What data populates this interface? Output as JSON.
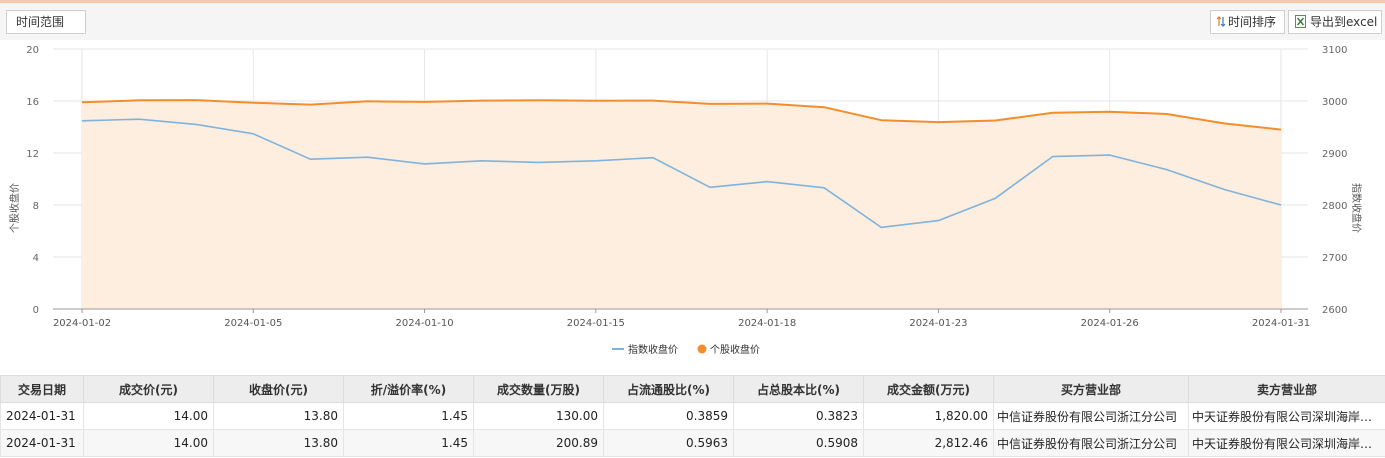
{
  "toolbar": {
    "time_range_label": "时间范围",
    "sort_label": "时间排序",
    "export_label": "导出到excel"
  },
  "chart_data": {
    "type": "line",
    "x": [
      "2024-01-02",
      "2024-01-03",
      "2024-01-04",
      "2024-01-05",
      "2024-01-08",
      "2024-01-09",
      "2024-01-10",
      "2024-01-11",
      "2024-01-12",
      "2024-01-15",
      "2024-01-16",
      "2024-01-17",
      "2024-01-18",
      "2024-01-19",
      "2024-01-22",
      "2024-01-23",
      "2024-01-24",
      "2024-01-25",
      "2024-01-26",
      "2024-01-29",
      "2024-01-30",
      "2024-01-31"
    ],
    "x_tick_labels": [
      "2024-01-02",
      "2024-01-05",
      "2024-01-10",
      "2024-01-15",
      "2024-01-18",
      "2024-01-23",
      "2024-01-26",
      "2024-01-31"
    ],
    "y_left_label": "个股收盘价",
    "y_right_label": "指数收盘价",
    "y_left_ticks": [
      0,
      4,
      8,
      12,
      16,
      20
    ],
    "y_right_ticks": [
      2600,
      2700,
      2800,
      2900,
      3000,
      3100
    ],
    "y_left_range": [
      0,
      20
    ],
    "y_right_range": [
      2600,
      3100
    ],
    "grid": true,
    "legend_position": "bottom-center",
    "series": [
      {
        "name": "指数收盘价",
        "axis": "right",
        "color": "#7fb3dc",
        "values": [
          2962,
          2965,
          2955,
          2937,
          2888,
          2892,
          2879,
          2885,
          2882,
          2885,
          2891,
          2834,
          2845,
          2833,
          2757,
          2770,
          2813,
          2893,
          2896,
          2868,
          2830,
          2800
        ]
      },
      {
        "name": "个股收盘价",
        "axis": "left",
        "color": "#f28e2b",
        "area_fill": "#fdeee0",
        "values": [
          15.9,
          16.05,
          16.07,
          15.87,
          15.72,
          15.98,
          15.93,
          16.03,
          16.05,
          16.02,
          16.03,
          15.78,
          15.8,
          15.52,
          14.52,
          14.38,
          14.5,
          15.1,
          15.18,
          15.0,
          14.28,
          13.8
        ]
      }
    ]
  },
  "table": {
    "headers": [
      "交易日期",
      "成交价(元)",
      "收盘价(元)",
      "折/溢价率(%)",
      "成交数量(万股)",
      "占流通股比(%)",
      "占总股本比(%)",
      "成交金额(万元)",
      "买方营业部",
      "卖方营业部"
    ],
    "rows": [
      [
        "2024-01-31",
        "14.00",
        "13.80",
        "1.45",
        "130.00",
        "0.3859",
        "0.3823",
        "1,820.00",
        "中信证券股份有限公司浙江分公司",
        "中天证券股份有限公司深圳海岸城证券营业部"
      ],
      [
        "2024-01-31",
        "14.00",
        "13.80",
        "1.45",
        "200.89",
        "0.5963",
        "0.5908",
        "2,812.46",
        "中信证券股份有限公司浙江分公司",
        "中天证券股份有限公司深圳海岸城证券营业部"
      ]
    ]
  }
}
